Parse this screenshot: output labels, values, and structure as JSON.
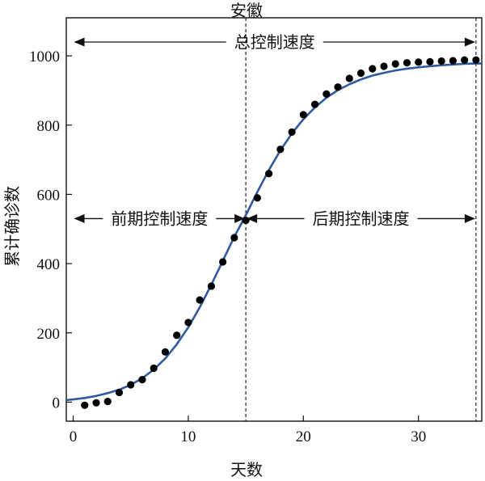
{
  "chart_data": {
    "type": "scatter",
    "title": "安徽",
    "xlabel": "天数",
    "ylabel": "累计确诊数",
    "xlim": [
      -0.6,
      35.5
    ],
    "ylim": [
      -55,
      1110
    ],
    "xticks": [
      0,
      10,
      20,
      30
    ],
    "yticks": [
      0,
      200,
      400,
      600,
      800,
      1000
    ],
    "grid": false,
    "series": [
      {
        "kind": "points",
        "x": [
          1,
          2,
          3,
          4,
          5,
          6,
          7,
          8,
          9,
          10,
          11,
          12,
          13,
          14,
          15,
          16,
          17,
          18,
          19,
          20,
          21,
          22,
          23,
          24,
          25,
          26,
          27,
          28,
          29,
          30,
          31,
          32,
          33,
          34,
          35
        ],
        "y": [
          -9,
          -2,
          2,
          28,
          50,
          65,
          98,
          145,
          193,
          230,
          295,
          335,
          405,
          475,
          525,
          590,
          660,
          730,
          780,
          830,
          860,
          890,
          910,
          935,
          950,
          963,
          970,
          977,
          980,
          982,
          983,
          985,
          986,
          988,
          988
        ]
      },
      {
        "kind": "fitted-curve",
        "x": [
          -0.6,
          0,
          1,
          2,
          3,
          4,
          5,
          6,
          7,
          8,
          9,
          10,
          11,
          12,
          13,
          14,
          15,
          16,
          17,
          18,
          19,
          20,
          21,
          22,
          23,
          24,
          25,
          26,
          27,
          28,
          29,
          30,
          31,
          32,
          33,
          34,
          35,
          35.5
        ],
        "y": [
          6,
          8,
          12,
          18,
          26,
          36,
          50,
          69,
          94,
          126,
          167,
          216,
          274,
          339,
          408,
          478,
          540,
          607,
          670,
          727,
          776,
          817,
          851,
          879,
          901,
          918,
          932,
          943,
          951,
          958,
          963,
          967,
          970,
          973,
          975,
          977,
          978,
          978
        ]
      }
    ],
    "annotations": {
      "total_speed": {
        "label": "总控制速度",
        "from_x": 0,
        "to_x": 35,
        "y": 1040
      },
      "early_speed": {
        "label": "前期控制速度",
        "from_x": 0,
        "to_x": 15,
        "y": 530
      },
      "late_speed": {
        "label": "后期控制速度",
        "from_x": 15,
        "to_x": 35,
        "y": 530
      },
      "vlines_x": [
        15,
        35
      ]
    },
    "colors": {
      "points": "#000000",
      "curve": "#2f5a9e"
    }
  }
}
